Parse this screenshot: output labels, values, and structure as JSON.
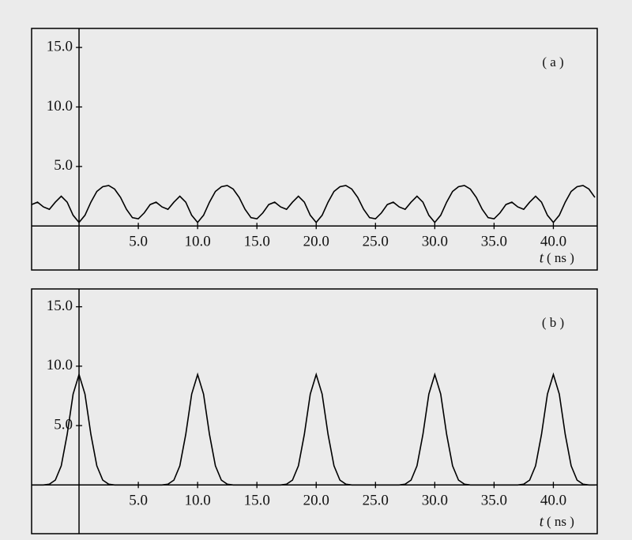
{
  "chart_data": [
    {
      "type": "line",
      "annotation": "( a )",
      "xlabel_var": "t",
      "xlabel_unit": "( ns )",
      "xlim": [
        -4,
        43.7
      ],
      "ylim": [
        -3.7,
        16.6
      ],
      "xticks": [
        {
          "value": 5,
          "label": "5.0"
        },
        {
          "value": 10,
          "label": "10.0"
        },
        {
          "value": 15,
          "label": "15.0"
        },
        {
          "value": 20,
          "label": "20.0"
        },
        {
          "value": 25,
          "label": "25.0"
        },
        {
          "value": 30,
          "label": "30.0"
        },
        {
          "value": 35,
          "label": "35.0"
        },
        {
          "value": 40,
          "label": "40.0"
        }
      ],
      "yticks": [
        {
          "value": 5,
          "label": "5.0"
        },
        {
          "value": 10,
          "label": "10.0"
        },
        {
          "value": 15,
          "label": "15.0"
        }
      ],
      "series": [
        {
          "color": "#000000",
          "x": [
            -4,
            -3.5,
            -3,
            -2.5,
            -2,
            -1.5,
            -1,
            -0.5,
            0,
            0.5,
            1,
            1.5,
            2,
            2.5,
            3,
            3.5,
            4,
            4.5,
            5,
            5.5,
            6,
            6.5,
            7,
            7.5,
            8,
            8.5,
            9,
            9.5,
            10,
            10.5,
            11,
            11.5,
            12,
            12.5,
            13,
            13.5,
            14,
            14.5,
            15,
            15.5,
            16,
            16.5,
            17,
            17.5,
            18,
            18.5,
            19,
            19.5,
            20,
            20.5,
            21,
            21.5,
            22,
            22.5,
            23,
            23.5,
            24,
            24.5,
            25,
            25.5,
            26,
            26.5,
            27,
            27.5,
            28,
            28.5,
            29,
            29.5,
            30,
            30.5,
            31,
            31.5,
            32,
            32.5,
            33,
            33.5,
            34,
            34.5,
            35,
            35.5,
            36,
            36.5,
            37,
            37.5,
            38,
            38.5,
            39,
            39.5,
            40,
            40.5,
            41,
            41.5,
            42,
            42.5,
            43,
            43.5
          ],
          "values": [
            1.8,
            2.0,
            1.6,
            1.4,
            2.0,
            2.5,
            2.0,
            0.9,
            0.3,
            0.9,
            2.0,
            2.9,
            3.3,
            3.4,
            3.1,
            2.4,
            1.4,
            0.7,
            0.6,
            1.1,
            1.8,
            2.0,
            1.6,
            1.4,
            2.0,
            2.5,
            2.0,
            0.9,
            0.3,
            0.9,
            2.0,
            2.9,
            3.3,
            3.4,
            3.1,
            2.4,
            1.4,
            0.7,
            0.6,
            1.1,
            1.8,
            2.0,
            1.6,
            1.4,
            2.0,
            2.5,
            2.0,
            0.9,
            0.3,
            0.9,
            2.0,
            2.9,
            3.3,
            3.4,
            3.1,
            2.4,
            1.4,
            0.7,
            0.6,
            1.1,
            1.8,
            2.0,
            1.6,
            1.4,
            2.0,
            2.5,
            2.0,
            0.9,
            0.3,
            0.9,
            2.0,
            2.9,
            3.3,
            3.4,
            3.1,
            2.4,
            1.4,
            0.7,
            0.6,
            1.1,
            1.8,
            2.0,
            1.6,
            1.4,
            2.0,
            2.5,
            2.0,
            0.9,
            0.3,
            0.9,
            2.0,
            2.9,
            3.3,
            3.4,
            3.1,
            2.4
          ]
        }
      ]
    },
    {
      "type": "line",
      "annotation": "( b )",
      "xlabel_var": "t",
      "xlabel_unit": "( ns )",
      "xlim": [
        -4,
        43.7
      ],
      "ylim": [
        -4.1,
        16.5
      ],
      "xticks": [
        {
          "value": 5,
          "label": "5.0"
        },
        {
          "value": 10,
          "label": "10.0"
        },
        {
          "value": 15,
          "label": "15.0"
        },
        {
          "value": 20,
          "label": "20.0"
        },
        {
          "value": 25,
          "label": "25.0"
        },
        {
          "value": 30,
          "label": "30.0"
        },
        {
          "value": 35,
          "label": "35.0"
        },
        {
          "value": 40,
          "label": "40.0"
        }
      ],
      "yticks": [
        {
          "value": 5,
          "label": "5.0"
        },
        {
          "value": 10,
          "label": "10.0"
        },
        {
          "value": 15,
          "label": "15.0"
        }
      ],
      "series": [
        {
          "color": "#000000",
          "x": [
            -4,
            -3.5,
            -3,
            -2.5,
            -2,
            -1.5,
            -1,
            -0.5,
            0,
            0.5,
            1,
            1.5,
            2,
            2.5,
            3,
            3.5,
            4,
            4.5,
            5,
            5.5,
            6,
            6.5,
            7,
            7.5,
            8,
            8.5,
            9,
            9.5,
            10,
            10.5,
            11,
            11.5,
            12,
            12.5,
            13,
            13.5,
            14,
            14.5,
            15,
            15.5,
            16,
            16.5,
            17,
            17.5,
            18,
            18.5,
            19,
            19.5,
            20,
            20.5,
            21,
            21.5,
            22,
            22.5,
            23,
            23.5,
            24,
            24.5,
            25,
            25.5,
            26,
            26.5,
            27,
            27.5,
            28,
            28.5,
            29,
            29.5,
            30,
            30.5,
            31,
            31.5,
            32,
            32.5,
            33,
            33.5,
            34,
            34.5,
            35,
            35.5,
            36,
            36.5,
            37,
            37.5,
            38,
            38.5,
            39,
            39.5,
            40,
            40.5,
            41,
            41.5,
            42,
            42.5,
            43,
            43.5
          ],
          "values": [
            0,
            0,
            0,
            0.07,
            0.41,
            1.61,
            4.26,
            7.65,
            9.3,
            7.65,
            4.26,
            1.61,
            0.41,
            0.07,
            0,
            0,
            0,
            0,
            0,
            0,
            0,
            0,
            0,
            0.07,
            0.41,
            1.61,
            4.26,
            7.65,
            9.3,
            7.65,
            4.26,
            1.61,
            0.41,
            0.07,
            0,
            0,
            0,
            0,
            0,
            0,
            0,
            0,
            0,
            0.07,
            0.41,
            1.61,
            4.26,
            7.65,
            9.3,
            7.65,
            4.26,
            1.61,
            0.41,
            0.07,
            0,
            0,
            0,
            0,
            0,
            0,
            0,
            0,
            0,
            0.07,
            0.41,
            1.61,
            4.26,
            7.65,
            9.3,
            7.65,
            4.26,
            1.61,
            0.41,
            0.07,
            0,
            0,
            0,
            0,
            0,
            0,
            0,
            0,
            0,
            0.07,
            0.41,
            1.61,
            4.26,
            7.65,
            9.3,
            7.65,
            4.26,
            1.61,
            0.41,
            0.07,
            0,
            0
          ]
        }
      ]
    }
  ]
}
